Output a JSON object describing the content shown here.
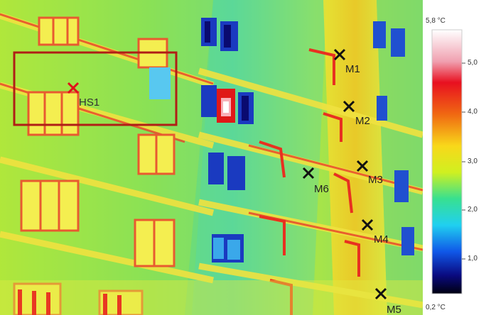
{
  "image": {
    "subject": "thermal-image-building-facade",
    "markers": [
      {
        "id": "M1",
        "label": "M1"
      },
      {
        "id": "M2",
        "label": "M2"
      },
      {
        "id": "M3",
        "label": "M3"
      },
      {
        "id": "M4",
        "label": "M4"
      },
      {
        "id": "M5",
        "label": "M5"
      },
      {
        "id": "M6",
        "label": "M6"
      },
      {
        "id": "HS1",
        "label": "HS1"
      }
    ],
    "marker_color": "#111111",
    "hotspot_color": "#e0101a",
    "highlight_box_color": "#b01e16"
  },
  "scale": {
    "max_label": "5,8 °C",
    "min_label": "0,2 °C",
    "ticks": [
      "5,0",
      "4,0",
      "3,0",
      "2,0",
      "1,0"
    ],
    "gradient_colors": [
      "#ffffff",
      "#f04050",
      "#e01018",
      "#f07010",
      "#f8d010",
      "#d8f020",
      "#40e080",
      "#20d0f0",
      "#1060f0",
      "#101090",
      "#000010"
    ]
  }
}
